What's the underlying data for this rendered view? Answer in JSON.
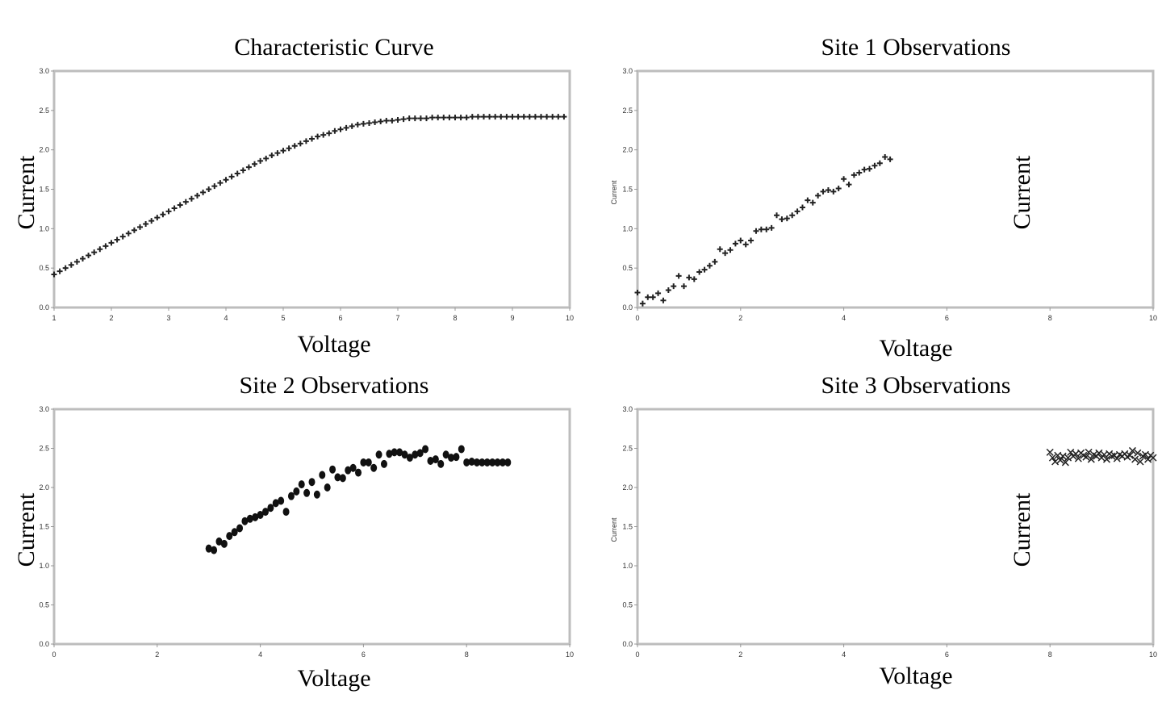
{
  "chart_data": [
    {
      "type": "scatter",
      "title": "Characteristic Curve",
      "xlabel": "Voltage",
      "ylabel": "Current",
      "xlim": [
        1,
        10
      ],
      "ylim": [
        0,
        3
      ],
      "xticks": [
        "1",
        "2",
        "3",
        "4",
        "5",
        "6",
        "7",
        "8",
        "9",
        "10"
      ],
      "yticks": [
        "0.0",
        "0.5",
        "1.0",
        "1.5",
        "2.0",
        "2.5",
        "3.0"
      ],
      "marker": "plus",
      "series": [
        {
          "x": [
            1.0,
            1.1,
            1.2,
            1.3,
            1.4,
            1.5,
            1.6,
            1.7,
            1.8,
            1.9,
            2.0,
            2.1,
            2.2,
            2.3,
            2.4,
            2.5,
            2.6,
            2.7,
            2.8,
            2.9,
            3.0,
            3.1,
            3.2,
            3.3,
            3.4,
            3.5,
            3.6,
            3.7,
            3.8,
            3.9,
            4.0,
            4.1,
            4.2,
            4.3,
            4.4,
            4.5,
            4.6,
            4.7,
            4.8,
            4.9,
            5.0,
            5.1,
            5.2,
            5.3,
            5.4,
            5.5,
            5.6,
            5.7,
            5.8,
            5.9,
            6.0,
            6.1,
            6.2,
            6.3,
            6.4,
            6.5,
            6.6,
            6.7,
            6.8,
            6.9,
            7.0,
            7.1,
            7.2,
            7.3,
            7.4,
            7.5,
            7.6,
            7.7,
            7.8,
            7.9,
            8.0,
            8.1,
            8.2,
            8.3,
            8.4,
            8.5,
            8.6,
            8.7,
            8.8,
            8.9,
            9.0,
            9.1,
            9.2,
            9.3,
            9.4,
            9.5,
            9.6,
            9.7,
            9.8,
            9.9
          ],
          "y": [
            0.42,
            0.46,
            0.5,
            0.54,
            0.58,
            0.62,
            0.66,
            0.7,
            0.74,
            0.78,
            0.82,
            0.86,
            0.9,
            0.94,
            0.98,
            1.02,
            1.06,
            1.1,
            1.14,
            1.18,
            1.22,
            1.26,
            1.3,
            1.34,
            1.38,
            1.42,
            1.46,
            1.5,
            1.54,
            1.58,
            1.62,
            1.66,
            1.7,
            1.74,
            1.78,
            1.82,
            1.86,
            1.89,
            1.93,
            1.96,
            1.99,
            2.02,
            2.05,
            2.08,
            2.11,
            2.14,
            2.17,
            2.19,
            2.21,
            2.24,
            2.26,
            2.28,
            2.3,
            2.32,
            2.33,
            2.34,
            2.35,
            2.36,
            2.37,
            2.37,
            2.38,
            2.39,
            2.4,
            2.4,
            2.4,
            2.4,
            2.41,
            2.41,
            2.41,
            2.41,
            2.41,
            2.41,
            2.41,
            2.42,
            2.42,
            2.42,
            2.42,
            2.42,
            2.42,
            2.42,
            2.42,
            2.42,
            2.42,
            2.42,
            2.42,
            2.42,
            2.42,
            2.42,
            2.42,
            2.42
          ]
        }
      ]
    },
    {
      "type": "scatter",
      "title": "Site 1 Observations",
      "xlabel": "Voltage",
      "ylabel": "Current",
      "ylabel_small": "Current",
      "xlim": [
        0,
        10
      ],
      "ylim": [
        0,
        3
      ],
      "xticks": [
        "0",
        "2",
        "4",
        "6",
        "8",
        "10"
      ],
      "yticks": [
        "0.0",
        "0.5",
        "1.0",
        "1.5",
        "2.0",
        "2.5",
        "3.0"
      ],
      "marker": "plus",
      "series": [
        {
          "x": [
            0.0,
            0.1,
            0.2,
            0.3,
            0.4,
            0.5,
            0.6,
            0.7,
            0.8,
            0.9,
            1.0,
            1.1,
            1.2,
            1.3,
            1.4,
            1.5,
            1.6,
            1.7,
            1.8,
            1.9,
            2.0,
            2.1,
            2.2,
            2.3,
            2.4,
            2.5,
            2.6,
            2.7,
            2.8,
            2.9,
            3.0,
            3.1,
            3.2,
            3.3,
            3.4,
            3.5,
            3.6,
            3.7,
            3.8,
            3.9,
            4.0,
            4.1,
            4.2,
            4.3,
            4.4,
            4.5,
            4.6,
            4.7,
            4.8,
            4.9
          ],
          "y": [
            0.19,
            0.05,
            0.13,
            0.13,
            0.18,
            0.09,
            0.22,
            0.27,
            0.4,
            0.27,
            0.38,
            0.36,
            0.45,
            0.48,
            0.53,
            0.58,
            0.74,
            0.69,
            0.73,
            0.81,
            0.85,
            0.8,
            0.85,
            0.97,
            0.99,
            0.99,
            1.01,
            1.17,
            1.12,
            1.13,
            1.17,
            1.22,
            1.27,
            1.36,
            1.33,
            1.42,
            1.47,
            1.49,
            1.47,
            1.51,
            1.63,
            1.56,
            1.68,
            1.71,
            1.75,
            1.76,
            1.8,
            1.83,
            1.91,
            1.88
          ]
        }
      ]
    },
    {
      "type": "scatter",
      "title": "Site 2 Observations",
      "xlabel": "Voltage",
      "ylabel": "Current",
      "xlim": [
        0,
        10
      ],
      "ylim": [
        0,
        3
      ],
      "xticks": [
        "0",
        "2",
        "4",
        "6",
        "8",
        "10"
      ],
      "yticks": [
        "0.0",
        "0.5",
        "1.0",
        "1.5",
        "2.0",
        "2.5",
        "3.0"
      ],
      "marker": "dot",
      "series": [
        {
          "x": [
            3.0,
            3.1,
            3.2,
            3.3,
            3.4,
            3.5,
            3.6,
            3.7,
            3.8,
            3.9,
            4.0,
            4.1,
            4.2,
            4.3,
            4.4,
            4.5,
            4.6,
            4.7,
            4.8,
            4.9,
            5.0,
            5.1,
            5.2,
            5.3,
            5.4,
            5.5,
            5.6,
            5.7,
            5.8,
            5.9,
            6.0,
            6.1,
            6.2,
            6.3,
            6.4,
            6.5,
            6.6,
            6.7,
            6.8,
            6.9,
            7.0,
            7.1,
            7.2,
            7.3,
            7.4,
            7.5,
            7.6,
            7.7,
            7.8,
            7.9,
            8.0,
            8.1,
            8.2,
            8.3,
            8.4,
            8.5,
            8.6,
            8.7,
            8.8
          ],
          "y": [
            1.22,
            1.2,
            1.31,
            1.28,
            1.38,
            1.43,
            1.48,
            1.57,
            1.6,
            1.62,
            1.65,
            1.69,
            1.74,
            1.8,
            1.83,
            1.69,
            1.89,
            1.95,
            2.04,
            1.93,
            2.07,
            1.91,
            2.16,
            2.0,
            2.23,
            2.13,
            2.12,
            2.22,
            2.25,
            2.19,
            2.32,
            2.32,
            2.25,
            2.42,
            2.3,
            2.43,
            2.45,
            2.45,
            2.42,
            2.38,
            2.42,
            2.44,
            2.49,
            2.34,
            2.36,
            2.3,
            2.42,
            2.38,
            2.39,
            2.49,
            2.32,
            2.33,
            2.32,
            2.32,
            2.32,
            2.32,
            2.32,
            2.32,
            2.32
          ]
        }
      ]
    },
    {
      "type": "scatter",
      "title": "Site 3 Observations",
      "xlabel": "Voltage",
      "ylabel": "Current",
      "ylabel_small": "Current",
      "xlim": [
        0,
        10
      ],
      "ylim": [
        0,
        3
      ],
      "xticks": [
        "0",
        "2",
        "4",
        "6",
        "8",
        "10"
      ],
      "yticks": [
        "0.0",
        "0.5",
        "1.0",
        "1.5",
        "2.0",
        "2.5",
        "3.0"
      ],
      "marker": "x",
      "series": [
        {
          "x": [
            8.0,
            8.05,
            8.1,
            8.15,
            8.2,
            8.25,
            8.3,
            8.35,
            8.4,
            8.45,
            8.5,
            8.55,
            8.6,
            8.65,
            8.7,
            8.75,
            8.8,
            8.85,
            8.9,
            8.95,
            9.0,
            9.05,
            9.1,
            9.15,
            9.2,
            9.25,
            9.3,
            9.35,
            9.4,
            9.45,
            9.5,
            9.55,
            9.6,
            9.65,
            9.7,
            9.75,
            9.8,
            9.85,
            9.9,
            9.95,
            10.0
          ],
          "y": [
            2.45,
            2.38,
            2.33,
            2.41,
            2.35,
            2.4,
            2.32,
            2.38,
            2.45,
            2.4,
            2.43,
            2.37,
            2.44,
            2.41,
            2.39,
            2.45,
            2.36,
            2.42,
            2.4,
            2.44,
            2.38,
            2.42,
            2.36,
            2.43,
            2.4,
            2.41,
            2.37,
            2.42,
            2.4,
            2.43,
            2.39,
            2.41,
            2.47,
            2.36,
            2.44,
            2.33,
            2.4,
            2.42,
            2.36,
            2.41,
            2.38
          ]
        }
      ]
    }
  ]
}
